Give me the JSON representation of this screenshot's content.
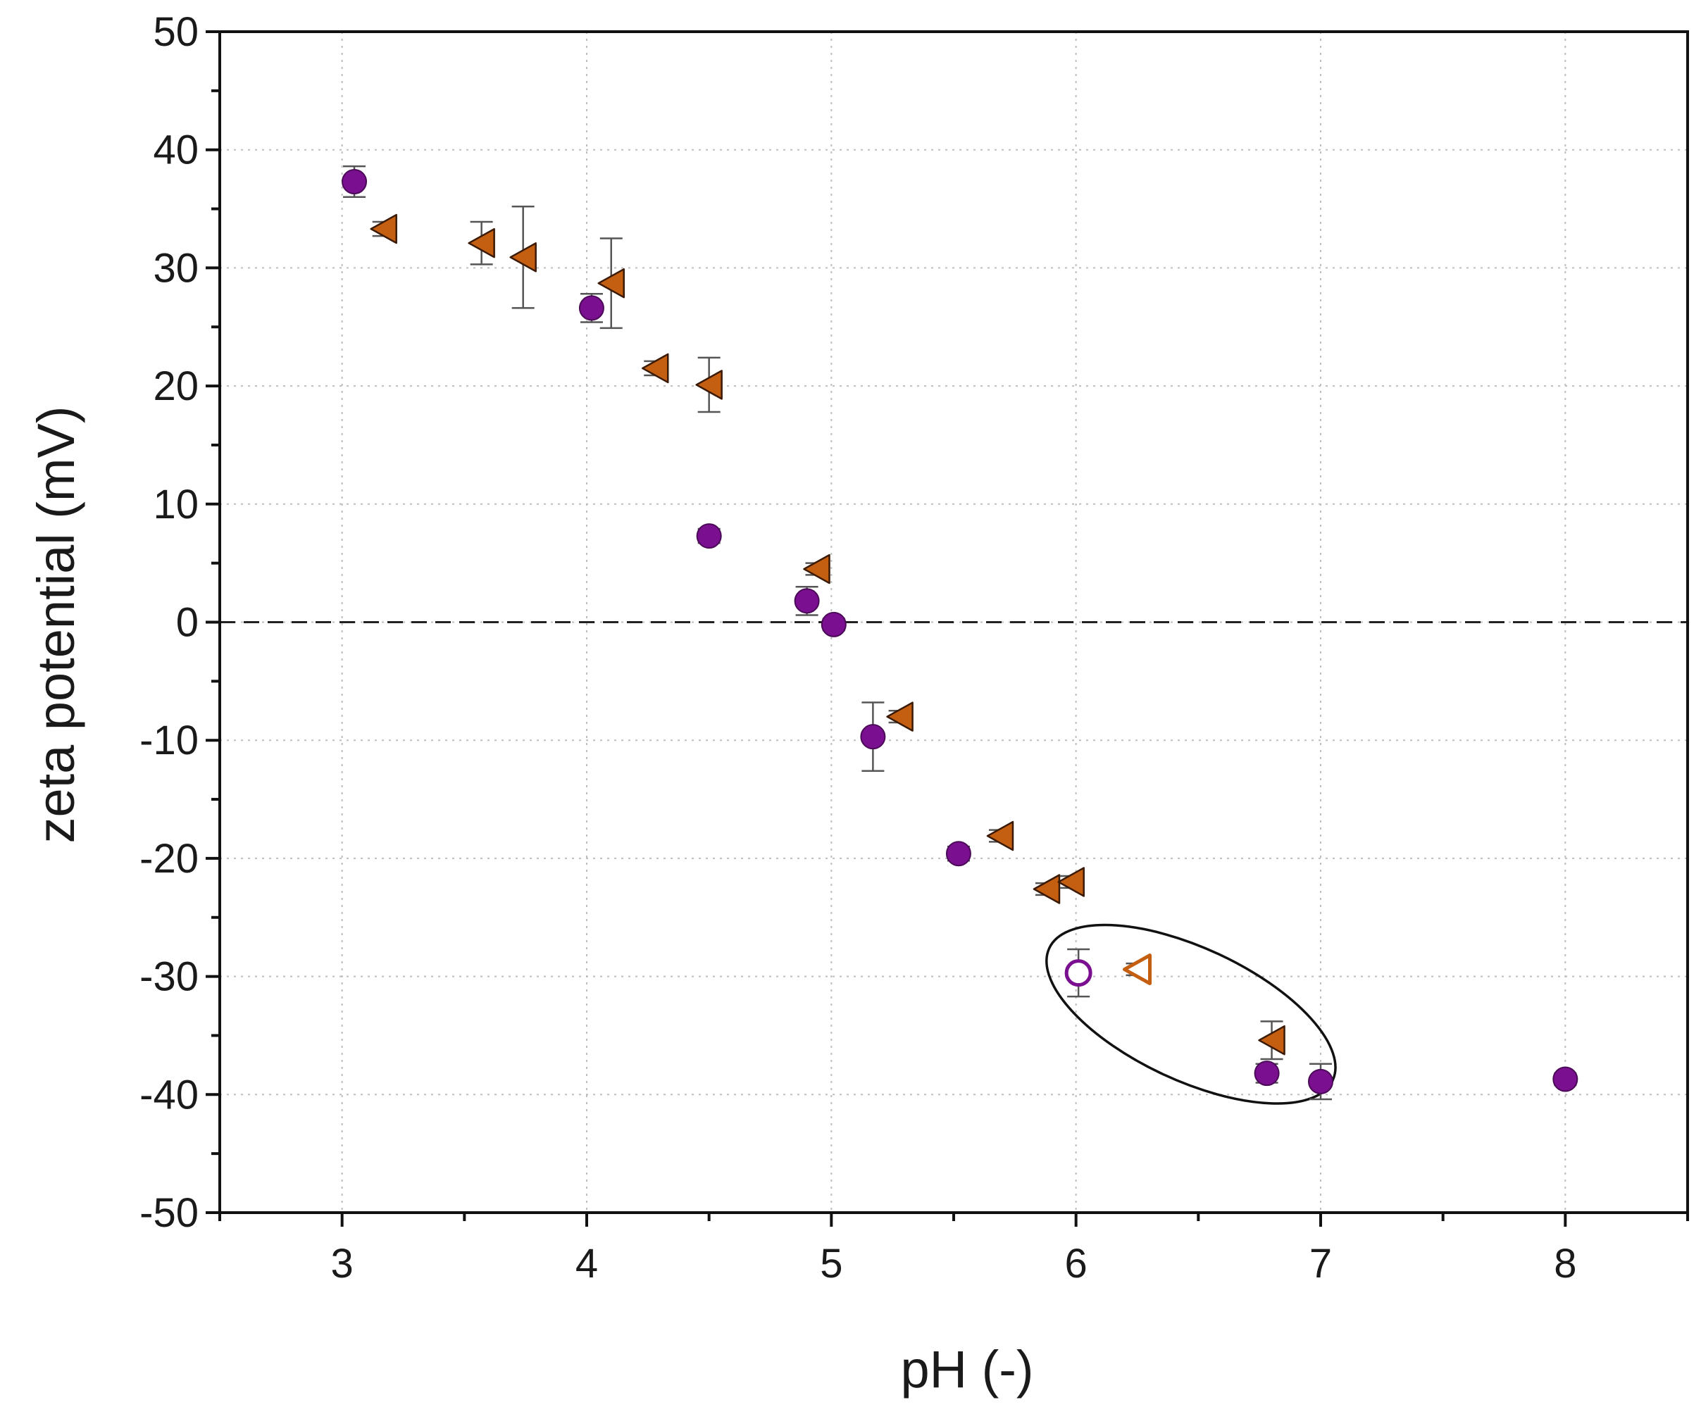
{
  "chart_data": {
    "type": "scatter",
    "title": "",
    "xlabel": "pH (-)",
    "ylabel": "zeta potential (mV)",
    "xlim": [
      2.5,
      8.5
    ],
    "ylim": [
      -50,
      50
    ],
    "xticks": [
      3,
      4,
      5,
      6,
      7,
      8
    ],
    "xtick_labels": [
      "3",
      "4",
      "5",
      "6",
      "7",
      "8"
    ],
    "yticks": [
      -50,
      -40,
      -30,
      -20,
      -10,
      0,
      10,
      20,
      30,
      40,
      50
    ],
    "ytick_labels": [
      "-50",
      "-40",
      "-30",
      "-20",
      "-10",
      "0",
      "10",
      "20",
      "30",
      "40",
      "50"
    ],
    "grid": true,
    "reference_line": {
      "y": 0,
      "style": "dashed"
    },
    "series": [
      {
        "name": "circles",
        "marker": "circle",
        "color": "#7a0f8f",
        "points": [
          {
            "x": 3.05,
            "y": 37.3,
            "err": 1.3,
            "hollow": false
          },
          {
            "x": 4.02,
            "y": 26.6,
            "err": 1.2,
            "hollow": false
          },
          {
            "x": 4.5,
            "y": 7.3,
            "err": 0.6,
            "hollow": false
          },
          {
            "x": 4.9,
            "y": 1.8,
            "err": 1.2,
            "hollow": false
          },
          {
            "x": 5.01,
            "y": -0.2,
            "err": 0.5,
            "hollow": false
          },
          {
            "x": 5.17,
            "y": -9.7,
            "err": 2.9,
            "hollow": false
          },
          {
            "x": 5.52,
            "y": -19.6,
            "err": 0.6,
            "hollow": false
          },
          {
            "x": 6.01,
            "y": -29.7,
            "err": 2.0,
            "hollow": true
          },
          {
            "x": 6.78,
            "y": -38.2,
            "err": 0.8,
            "hollow": false
          },
          {
            "x": 7.0,
            "y": -38.9,
            "err": 1.5,
            "hollow": false
          },
          {
            "x": 8.0,
            "y": -38.7,
            "err": 0.5,
            "hollow": false
          }
        ]
      },
      {
        "name": "triangles",
        "marker": "left-triangle",
        "color": "#c45f12",
        "points": [
          {
            "x": 3.17,
            "y": 33.3,
            "err": 0.6,
            "hollow": false
          },
          {
            "x": 3.57,
            "y": 32.1,
            "err": 1.8,
            "hollow": false
          },
          {
            "x": 3.74,
            "y": 30.9,
            "err": 4.3,
            "hollow": false
          },
          {
            "x": 4.1,
            "y": 28.7,
            "err": 3.8,
            "hollow": false
          },
          {
            "x": 4.28,
            "y": 21.5,
            "err": 0.6,
            "hollow": false
          },
          {
            "x": 4.5,
            "y": 20.1,
            "err": 2.3,
            "hollow": false
          },
          {
            "x": 4.94,
            "y": 4.5,
            "err": 0.5,
            "hollow": false
          },
          {
            "x": 5.28,
            "y": -8.0,
            "err": 0.5,
            "hollow": false
          },
          {
            "x": 5.69,
            "y": -18.1,
            "err": 0.5,
            "hollow": false
          },
          {
            "x": 5.88,
            "y": -22.6,
            "err": 0.5,
            "hollow": false
          },
          {
            "x": 5.98,
            "y": -22.0,
            "err": 0.5,
            "hollow": false
          },
          {
            "x": 6.25,
            "y": -29.4,
            "err": 0.5,
            "hollow": true
          },
          {
            "x": 6.8,
            "y": -35.4,
            "err": 1.6,
            "hollow": false
          }
        ]
      }
    ],
    "annotations": [
      {
        "type": "ellipse",
        "center": [
          6.47,
          -33.2
        ],
        "note": "encircles outlier points"
      }
    ]
  }
}
